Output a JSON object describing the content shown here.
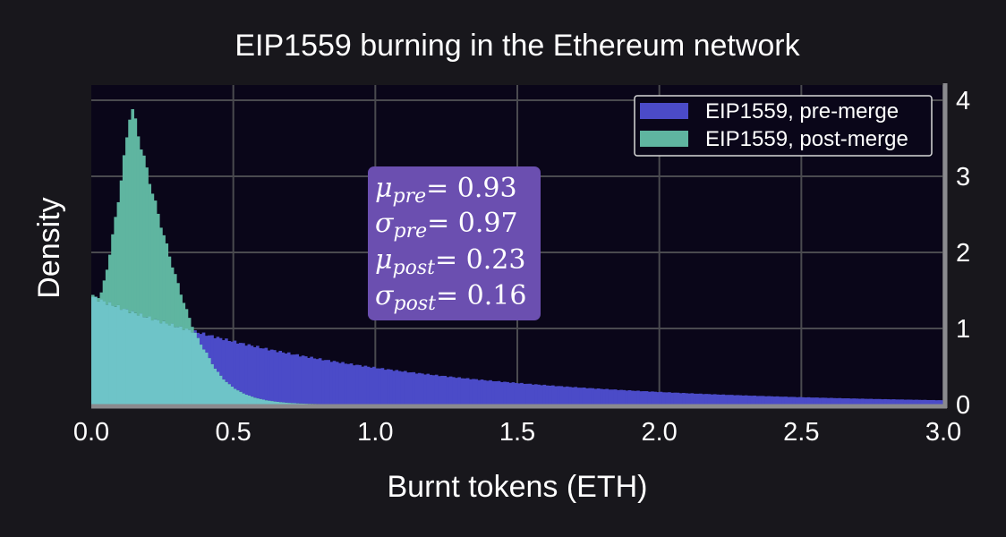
{
  "chart_data": {
    "type": "histogram",
    "title": "EIP1559 burning in the Ethereum network",
    "xlabel": "Burnt tokens (ETH)",
    "ylabel": "Density",
    "xlim": [
      0.0,
      3.0
    ],
    "ylim": [
      0,
      4.2
    ],
    "x_ticks": [
      "0.0",
      "0.5",
      "1.0",
      "1.5",
      "2.0",
      "2.5",
      "3.0"
    ],
    "x_tick_values": [
      0.0,
      0.5,
      1.0,
      1.5,
      2.0,
      2.5,
      3.0
    ],
    "y_ticks": [
      "0",
      "1",
      "2",
      "3",
      "4"
    ],
    "y_tick_values": [
      0,
      1,
      2,
      3,
      4
    ],
    "y_axis_side": "right",
    "grid": true,
    "legend_position": "top-right",
    "bin_width": 0.01,
    "series": [
      {
        "name": "EIP1559, pre-merge",
        "color": "#4b4bc8",
        "shape": {
          "type": "exponential",
          "mean": 0.93
        },
        "legend": "EIP1559, pre-merge"
      },
      {
        "name": "EIP1559, post-merge",
        "color": "#5fb5a0",
        "shape": {
          "type": "skewed-peak",
          "mode": 0.14,
          "peak": 3.95
        },
        "legend": "EIP1559, post-merge"
      }
    ],
    "annotation": {
      "lines": [
        {
          "sym": "μ",
          "sub": "pre",
          "value": "= 0.93"
        },
        {
          "sym": "σ",
          "sub": "pre",
          "value": "= 0.97"
        },
        {
          "sym": "μ",
          "sub": "post",
          "value": "= 0.23"
        },
        {
          "sym": "σ",
          "sub": "post",
          "value": "= 0.16"
        }
      ],
      "background": "#6b4fb0"
    }
  },
  "colors": {
    "page_bg": "#18171c",
    "plot_bg": "#0a0619",
    "grid": "#4a4a4f",
    "axis": "#8a8a8e",
    "pre": "#4b4bc8",
    "post": "#5fb5a0",
    "overlap": "#6ec4c8"
  }
}
